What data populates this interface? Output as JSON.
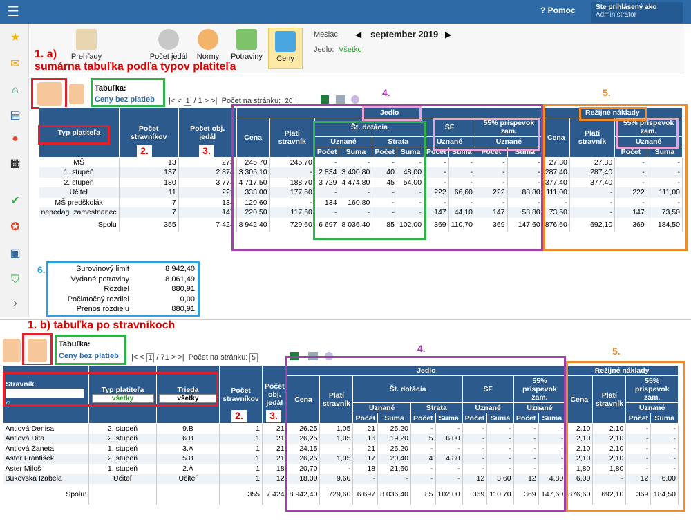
{
  "topbar": {
    "help": "Pomoc",
    "logged_as": "Ste prihlásený ako",
    "role": "Administrátor"
  },
  "toolbar": {
    "reports": "Prehľady",
    "meals": "Počet jedál",
    "norms": "Normy",
    "food": "Potraviny",
    "prices": "Ceny",
    "month_label": "Mesiac",
    "month_value": "september 2019",
    "meal_label": "Jedlo:",
    "meal_value": "Všetko"
  },
  "annot": {
    "a": "1. a)",
    "a_text": "sumárna tabuľka podľa typov platiteľa",
    "b": "1. b)",
    "b_text": "tabuľka po stravníkoch",
    "n2": "2.",
    "n3": "3.",
    "n4": "4.",
    "n5": "5.",
    "n6": "6."
  },
  "top": {
    "tab_label": "Tabuľka:",
    "tab_value": "Ceny bez platieb",
    "page_cur": "1",
    "page_total": "/ 1",
    "per_page_label": "Počet na stránku:",
    "per_page": "20",
    "h_type": "Typ platiteľa",
    "h_count": "Počet stravníkov",
    "h_meals": "Počet obj. jedál",
    "h_jedlo": "Jedlo",
    "h_rezia": "Režijné náklady",
    "h_cena": "Cena",
    "h_plati": "Platí stravník",
    "h_dot": "Št. dotácia",
    "h_sf": "SF",
    "h_55": "55% príspevok zam.",
    "h_uzn": "Uznané",
    "h_strata": "Strata",
    "h_pocet": "Počet",
    "h_suma": "Suma",
    "rows": [
      [
        "MŠ",
        "13",
        "273",
        "245,70",
        "245,70",
        "-",
        "-",
        "-",
        "-",
        "-",
        "-",
        "-",
        "-",
        "27,30",
        "27,30",
        "-",
        "-"
      ],
      [
        "1. stupeň",
        "137",
        "2 874",
        "3 305,10",
        "-",
        "2 834",
        "3 400,80",
        "40",
        "48,00",
        "-",
        "-",
        "-",
        "-",
        "287,40",
        "287,40",
        "-",
        "-"
      ],
      [
        "2. stupeň",
        "180",
        "3 774",
        "4 717,50",
        "188,70",
        "3 729",
        "4 474,80",
        "45",
        "54,00",
        "-",
        "-",
        "-",
        "-",
        "377,40",
        "377,40",
        "-",
        "-"
      ],
      [
        "Učiteľ",
        "11",
        "222",
        "333,00",
        "177,60",
        "-",
        "-",
        "-",
        "-",
        "222",
        "66,60",
        "222",
        "88,80",
        "111,00",
        "-",
        "222",
        "111,00"
      ],
      [
        "MŠ predškolák",
        "7",
        "134",
        "120,60",
        "-",
        "134",
        "160,80",
        "-",
        "-",
        "-",
        "-",
        "-",
        "-",
        "-",
        "-",
        "-",
        "-"
      ],
      [
        "nepedag. zamestnanec",
        "7",
        "147",
        "220,50",
        "117,60",
        "-",
        "-",
        "-",
        "-",
        "147",
        "44,10",
        "147",
        "58,80",
        "73,50",
        "-",
        "147",
        "73,50"
      ]
    ],
    "total": [
      "Spolu",
      "355",
      "7 424",
      "8 942,40",
      "729,60",
      "6 697",
      "8 036,40",
      "85",
      "102,00",
      "369",
      "110,70",
      "369",
      "147,60",
      "876,60",
      "692,10",
      "369",
      "184,50"
    ]
  },
  "summary": [
    [
      "Surovinový limit",
      "8 942,40"
    ],
    [
      "Vydané potraviny",
      "8 061,49"
    ],
    [
      "Rozdiel",
      "880,91"
    ],
    [
      "Počiatočný rozdiel",
      "0,00"
    ],
    [
      "Prenos rozdielu",
      "880,91"
    ]
  ],
  "bottom": {
    "tab_label": "Tabuľka:",
    "tab_value": "Ceny bez platieb",
    "page_cur": "1",
    "page_total": "/ 71",
    "per_page_label": "Počet na stránku:",
    "per_page": "5",
    "h_name": "Stravník",
    "h_type": "Typ platiteľa",
    "h_class": "Trieda",
    "sel_all": "všetky",
    "h_count": "Počet stravníkov",
    "h_meals": "Počet obj. jedál",
    "rows": [
      [
        "Antlová Denisa",
        "2. stupeň",
        "9.B",
        "1",
        "21",
        "26,25",
        "1,05",
        "21",
        "25,20",
        "-",
        "-",
        "-",
        "-",
        "-",
        "-",
        "2,10",
        "2,10",
        "-",
        "-"
      ],
      [
        "Antlová Dita",
        "2. stupeň",
        "6.B",
        "1",
        "21",
        "26,25",
        "1,05",
        "16",
        "19,20",
        "5",
        "6,00",
        "-",
        "-",
        "-",
        "-",
        "2,10",
        "2,10",
        "-",
        "-"
      ],
      [
        "Antlová Žaneta",
        "1. stupeň",
        "3.A",
        "1",
        "21",
        "24,15",
        "-",
        "21",
        "25,20",
        "-",
        "-",
        "-",
        "-",
        "-",
        "-",
        "2,10",
        "2,10",
        "-",
        "-"
      ],
      [
        "Aster František",
        "2. stupeň",
        "5.B",
        "1",
        "21",
        "26,25",
        "1,05",
        "17",
        "20,40",
        "4",
        "4,80",
        "-",
        "-",
        "-",
        "-",
        "2,10",
        "2,10",
        "-",
        "-"
      ],
      [
        "Aster Miloš",
        "1. stupeň",
        "2.A",
        "1",
        "18",
        "20,70",
        "-",
        "18",
        "21,60",
        "-",
        "-",
        "-",
        "-",
        "-",
        "-",
        "1,80",
        "1,80",
        "-",
        "-"
      ],
      [
        "Bukovská Izabela",
        "Učiteľ",
        "Učiteľ",
        "1",
        "12",
        "18,00",
        "9,60",
        "-",
        "-",
        "-",
        "-",
        "12",
        "3,60",
        "12",
        "4,80",
        "6,00",
        "-",
        "12",
        "6,00"
      ]
    ],
    "total": [
      "Spolu:",
      "",
      "",
      "355",
      "7 424",
      "8 942,40",
      "729,60",
      "6 697",
      "8 036,40",
      "85",
      "102,00",
      "369",
      "110,70",
      "369",
      "147,60",
      "876,60",
      "692,10",
      "369",
      "184,50"
    ]
  }
}
